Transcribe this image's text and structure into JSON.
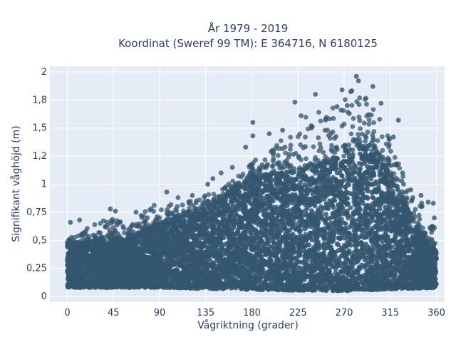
{
  "chart_data": {
    "type": "scatter",
    "title_lines": [
      "År 1979 - 2019",
      "Koordinat (Sweref 99 TM): E 364716, N 6180125"
    ],
    "xlabel": "Vågriktning (grader)",
    "ylabel": "Signifikant våghöjd (m)",
    "xlim": [
      -17,
      368
    ],
    "ylim": [
      -0.05,
      2.05
    ],
    "x_ticks": [
      0,
      45,
      90,
      135,
      180,
      225,
      270,
      315,
      360
    ],
    "x_tick_labels": [
      "0",
      "45",
      "90",
      "135",
      "180",
      "225",
      "270",
      "315",
      "360"
    ],
    "y_ticks": [
      0,
      0.25,
      0.5,
      0.75,
      1,
      1.25,
      1.5,
      1.75,
      2
    ],
    "y_tick_labels": [
      "0",
      "0,25",
      "0,5",
      "0,75",
      "1",
      "1,2",
      "1,5",
      "1,8",
      "2"
    ],
    "grid": true,
    "legend": "none",
    "marker_color": "#34566e",
    "plot_background": "#e5ecf6",
    "upper_envelope": [
      {
        "x": 0,
        "y": 0.5
      },
      {
        "x": 15,
        "y": 0.6
      },
      {
        "x": 40,
        "y": 0.7
      },
      {
        "x": 60,
        "y": 0.65
      },
      {
        "x": 90,
        "y": 0.85
      },
      {
        "x": 120,
        "y": 0.85
      },
      {
        "x": 150,
        "y": 0.95
      },
      {
        "x": 180,
        "y": 1.2
      },
      {
        "x": 200,
        "y": 1.35
      },
      {
        "x": 225,
        "y": 1.6
      },
      {
        "x": 250,
        "y": 1.65
      },
      {
        "x": 270,
        "y": 1.75
      },
      {
        "x": 285,
        "y": 1.95
      },
      {
        "x": 300,
        "y": 1.65
      },
      {
        "x": 315,
        "y": 1.45
      },
      {
        "x": 330,
        "y": 1.0
      },
      {
        "x": 345,
        "y": 0.85
      },
      {
        "x": 360,
        "y": 0.6
      }
    ],
    "dense_top": [
      {
        "x": 0,
        "y": 0.45
      },
      {
        "x": 30,
        "y": 0.5
      },
      {
        "x": 60,
        "y": 0.52
      },
      {
        "x": 90,
        "y": 0.65
      },
      {
        "x": 120,
        "y": 0.72
      },
      {
        "x": 150,
        "y": 0.85
      },
      {
        "x": 180,
        "y": 1.05
      },
      {
        "x": 210,
        "y": 1.1
      },
      {
        "x": 240,
        "y": 1.15
      },
      {
        "x": 270,
        "y": 1.25
      },
      {
        "x": 285,
        "y": 1.35
      },
      {
        "x": 300,
        "y": 1.25
      },
      {
        "x": 315,
        "y": 1.1
      },
      {
        "x": 330,
        "y": 0.8
      },
      {
        "x": 345,
        "y": 0.55
      },
      {
        "x": 360,
        "y": 0.4
      }
    ],
    "dense_bottom": [
      {
        "x": 0,
        "y": 0.08
      },
      {
        "x": 90,
        "y": 0.08
      },
      {
        "x": 180,
        "y": 0.06
      },
      {
        "x": 270,
        "y": 0.05
      },
      {
        "x": 360,
        "y": 0.08
      }
    ],
    "outlier_points": [
      {
        "x": 282,
        "y": 1.96
      },
      {
        "x": 284,
        "y": 1.92
      },
      {
        "x": 298,
        "y": 1.87
      },
      {
        "x": 268,
        "y": 1.84
      },
      {
        "x": 242,
        "y": 1.8
      },
      {
        "x": 306,
        "y": 1.72
      },
      {
        "x": 222,
        "y": 1.73
      },
      {
        "x": 273,
        "y": 1.7
      },
      {
        "x": 263,
        "y": 1.69
      },
      {
        "x": 294,
        "y": 1.62
      },
      {
        "x": 228,
        "y": 1.61
      },
      {
        "x": 252,
        "y": 1.58
      },
      {
        "x": 323,
        "y": 1.57
      },
      {
        "x": 181,
        "y": 1.55
      },
      {
        "x": 238,
        "y": 1.5
      },
      {
        "x": 210,
        "y": 1.48
      },
      {
        "x": 197,
        "y": 1.45
      },
      {
        "x": 181,
        "y": 1.43
      },
      {
        "x": 318,
        "y": 1.42
      },
      {
        "x": 174,
        "y": 1.33
      },
      {
        "x": 200,
        "y": 1.3
      },
      {
        "x": 161,
        "y": 1.15
      },
      {
        "x": 150,
        "y": 1.1
      },
      {
        "x": 142,
        "y": 1.05
      },
      {
        "x": 137,
        "y": 1.0
      },
      {
        "x": 122,
        "y": 0.9
      },
      {
        "x": 97,
        "y": 0.93
      },
      {
        "x": 108,
        "y": 0.88
      },
      {
        "x": 42,
        "y": 0.78
      },
      {
        "x": 47,
        "y": 0.76
      },
      {
        "x": 67,
        "y": 0.75
      },
      {
        "x": 78,
        "y": 0.7
      },
      {
        "x": 12,
        "y": 0.68
      },
      {
        "x": 3,
        "y": 0.66
      },
      {
        "x": 357,
        "y": 0.83
      },
      {
        "x": 352,
        "y": 0.84
      },
      {
        "x": 345,
        "y": 0.9
      },
      {
        "x": 335,
        "y": 0.95
      },
      {
        "x": 327,
        "y": 1.1
      },
      {
        "x": 328,
        "y": 1.0
      },
      {
        "x": 337,
        "y": 0.88
      },
      {
        "x": 358,
        "y": 0.7
      }
    ]
  }
}
